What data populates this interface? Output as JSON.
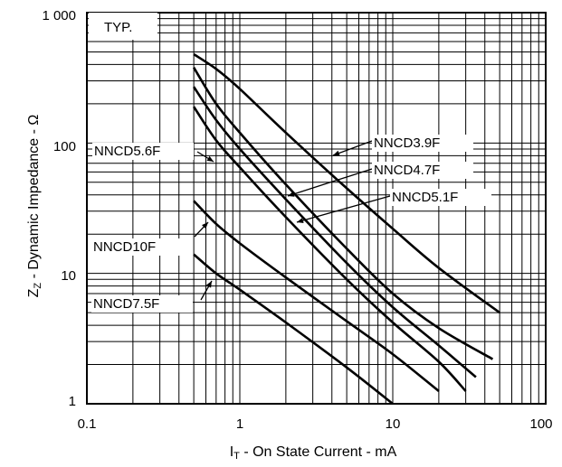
{
  "chart_data": {
    "type": "line",
    "x_scale": "log",
    "y_scale": "log",
    "xlim": [
      0.1,
      100
    ],
    "ylim": [
      1,
      1000
    ],
    "x_ticks": [
      "0.1",
      "1",
      "10",
      "100"
    ],
    "y_ticks": [
      "1",
      "10",
      "100",
      "1 000"
    ],
    "xlabel": {
      "main": "I",
      "sub": "T",
      "rest": " -  On State Current  - mA"
    },
    "ylabel": {
      "main": "Z",
      "sub": "Z",
      "rest": " -  Dynamic Impedance  - Ω"
    },
    "annotation": "TYP.",
    "grid": true,
    "series": [
      {
        "name": "NNCD3.9F",
        "x": [
          0.5,
          0.7,
          1,
          2,
          5,
          10,
          20,
          50
        ],
        "y": [
          480,
          370,
          260,
          120,
          45,
          22,
          11,
          5
        ]
      },
      {
        "name": "NNCD4.7F",
        "x": [
          0.5,
          0.7,
          1,
          2,
          5,
          10,
          20,
          45
        ],
        "y": [
          380,
          200,
          120,
          48,
          15.5,
          7,
          3.8,
          2.2
        ]
      },
      {
        "name": "NNCD5.1F",
        "x": [
          0.5,
          0.7,
          1,
          2,
          5,
          10,
          20,
          35
        ],
        "y": [
          270,
          150,
          90,
          37,
          12,
          5.5,
          2.8,
          1.6
        ]
      },
      {
        "name": "NNCD5.6F",
        "x": [
          0.5,
          0.7,
          1,
          2,
          5,
          10,
          20,
          30
        ],
        "y": [
          190,
          105,
          65,
          27,
          9,
          4.2,
          2.1,
          1.25
        ]
      },
      {
        "name": "NNCD10F",
        "x": [
          0.5,
          0.7,
          1,
          2,
          5,
          10,
          20
        ],
        "y": [
          36,
          24,
          17,
          9.3,
          4.3,
          2.4,
          1.25
        ]
      },
      {
        "name": "NNCD7.5F",
        "x": [
          0.5,
          0.7,
          1,
          2,
          5,
          10
        ],
        "y": [
          14,
          10,
          7.5,
          4.2,
          1.9,
          1.0
        ]
      }
    ]
  }
}
